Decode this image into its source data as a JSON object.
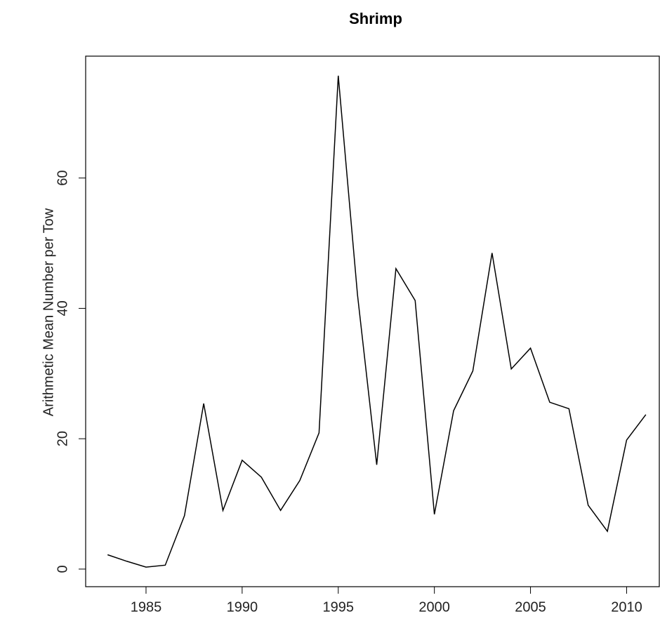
{
  "chart_data": {
    "type": "line",
    "title": "Shrimp",
    "y_label": "Arithmetic Mean Number per Tow",
    "x": [
      1983,
      1984,
      1985,
      1986,
      1987,
      1988,
      1989,
      1990,
      1991,
      1992,
      1993,
      1994,
      1995,
      1996,
      1997,
      1998,
      1999,
      2000,
      2001,
      2002,
      2003,
      2004,
      2005,
      2006,
      2007,
      2008,
      2009,
      2010,
      2011
    ],
    "series": [
      {
        "name": "Shrimp",
        "color": "#000000",
        "values": [
          2.2,
          1.2,
          0.3,
          0.6,
          8.2,
          25.4,
          9.0,
          16.7,
          14.1,
          9.0,
          13.6,
          20.9,
          75.7,
          42.1,
          16.0,
          46.1,
          41.2,
          8.4,
          24.3,
          30.4,
          48.5,
          30.7,
          33.9,
          25.6,
          24.6,
          9.8,
          5.8,
          19.8,
          23.7
        ]
      }
    ],
    "xlim": [
      1981.86,
      2011.7
    ],
    "xticks": [
      1985,
      1990,
      1995,
      2000,
      2005,
      2010
    ],
    "ylim": [
      -2.7,
      78.7
    ],
    "yticks": [
      0,
      20,
      40,
      60
    ],
    "grid": false
  }
}
